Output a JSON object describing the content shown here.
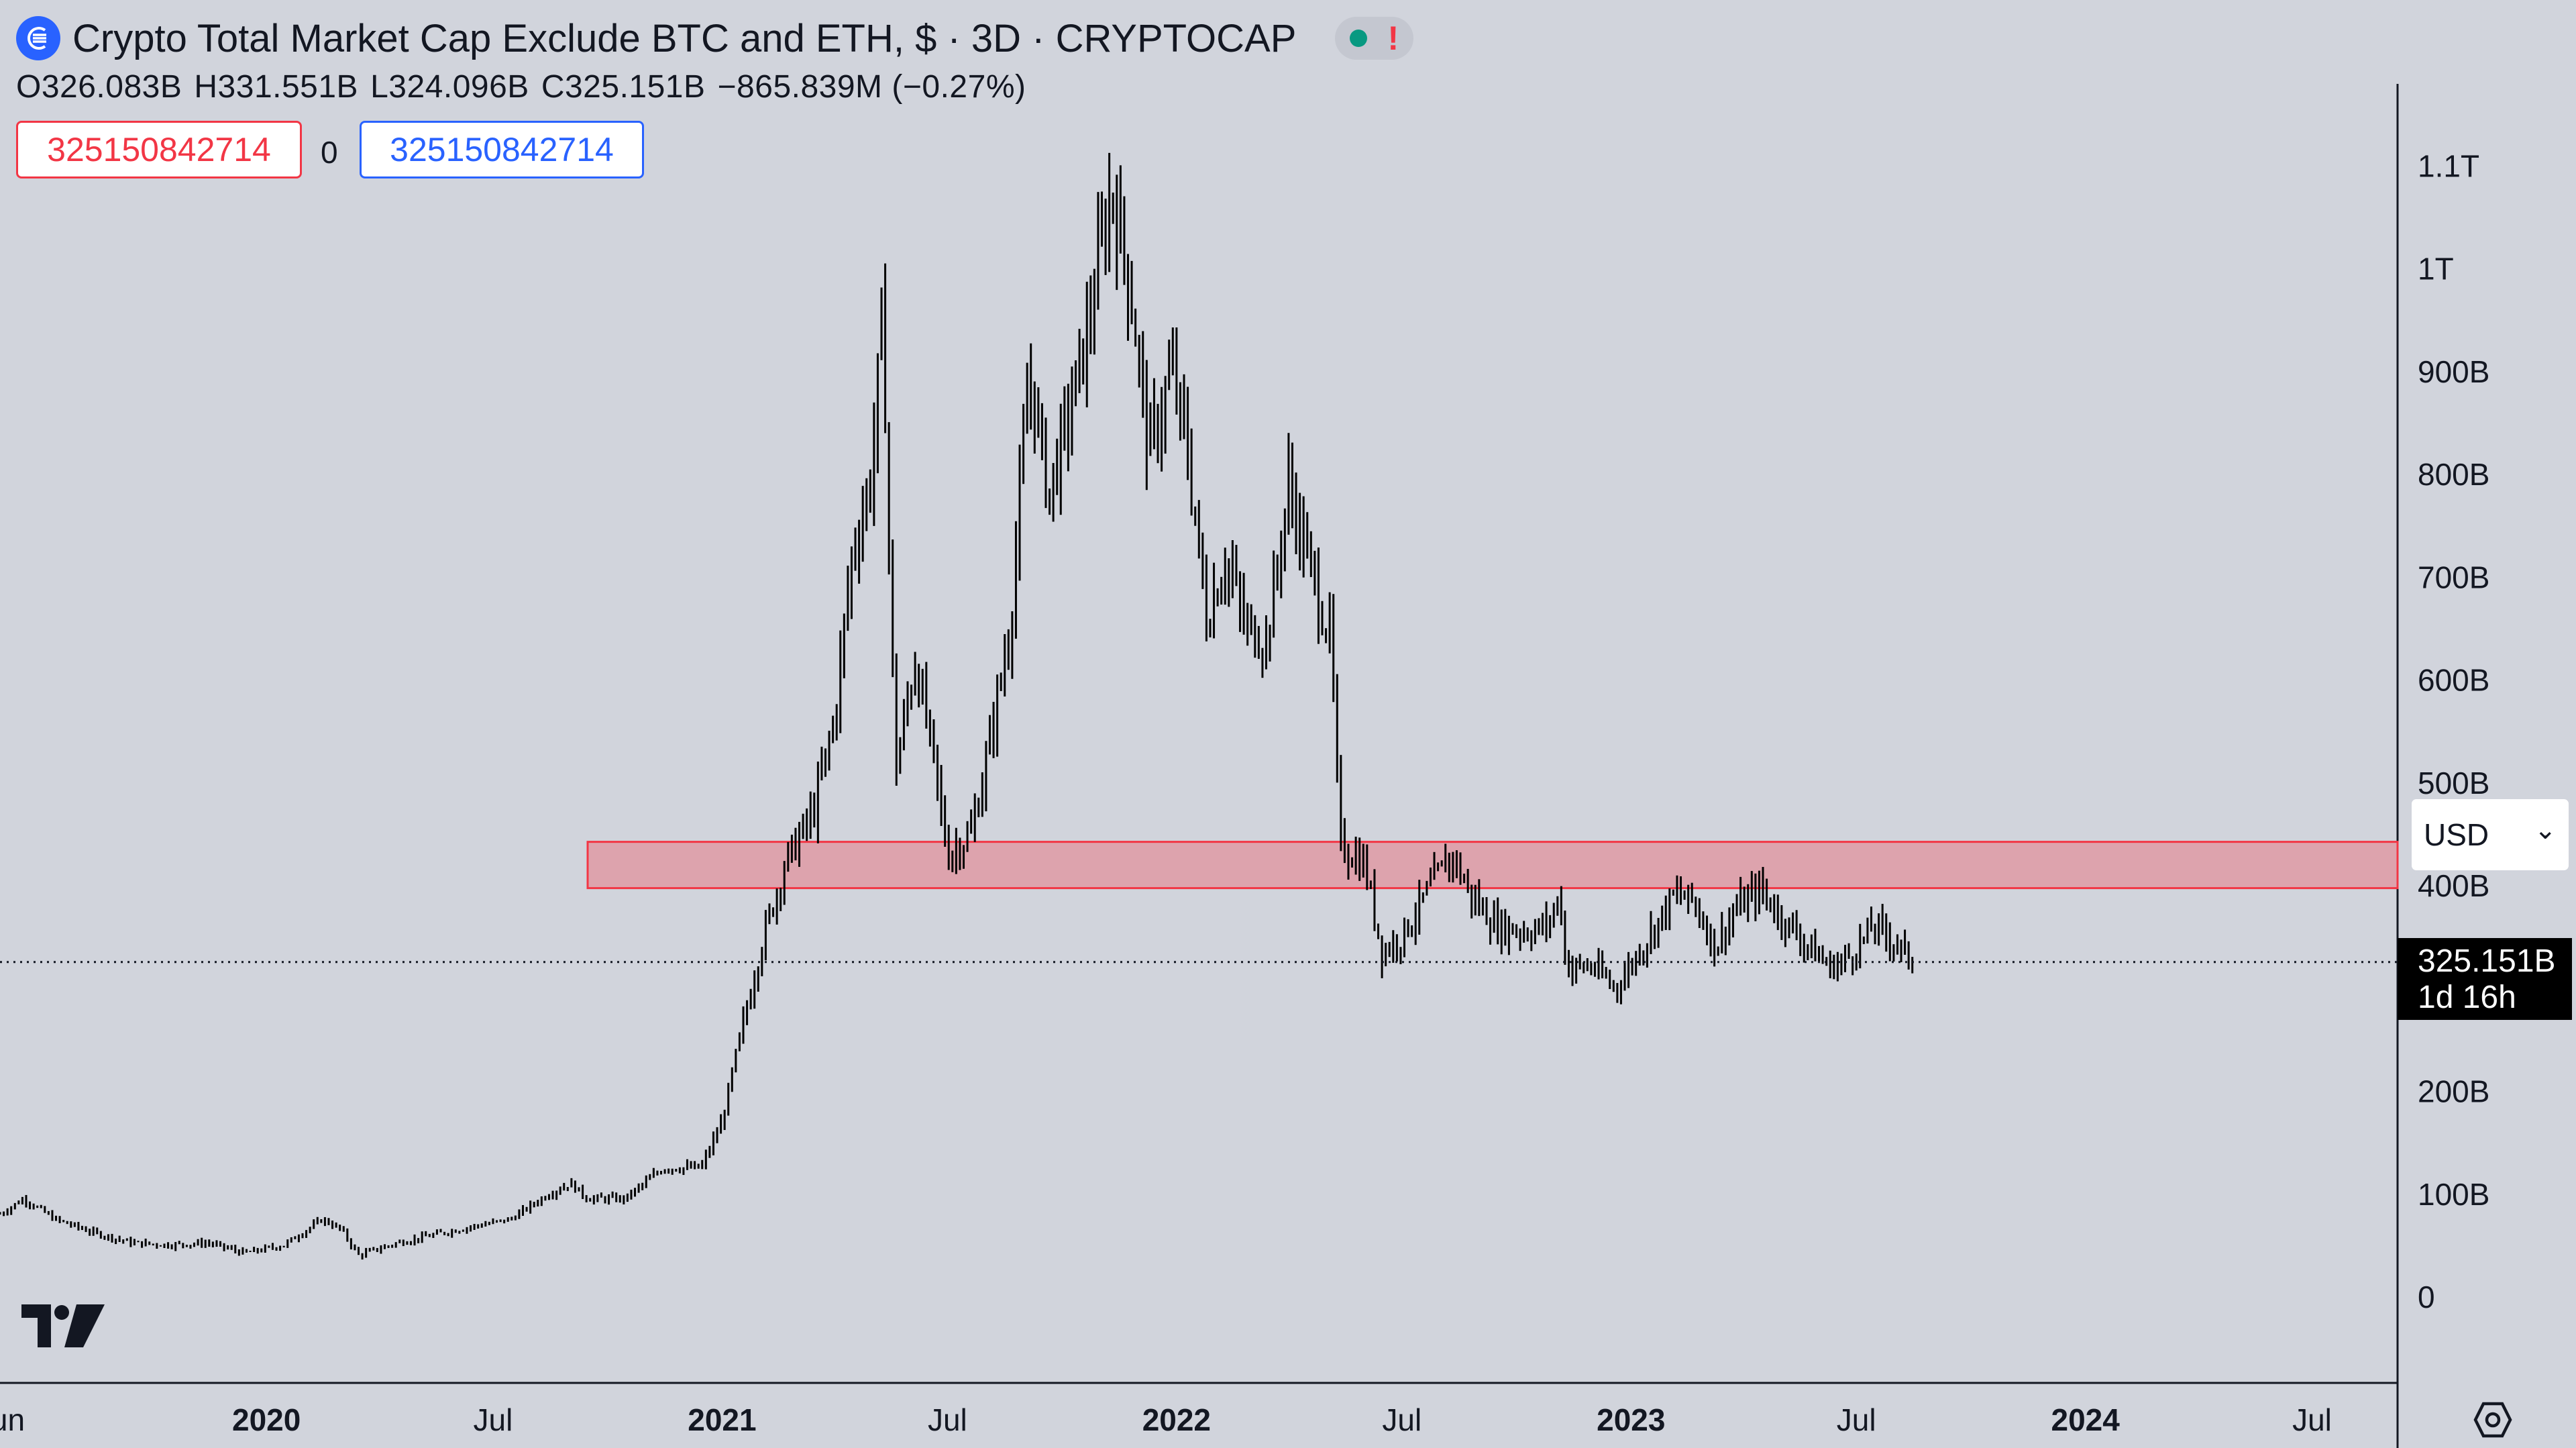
{
  "header": {
    "title": "Crypto Total Market Cap Exclude BTC and ETH, $ · 3D · CRYPTOCAP",
    "status_warning": "!"
  },
  "ohlc": {
    "o_label": "O",
    "o": "326.083B",
    "h_label": "H",
    "h": "331.551B",
    "l_label": "L",
    "l": "324.096B",
    "c_label": "C",
    "c": "325.151B",
    "change": "−865.839M (−0.27%)"
  },
  "values_row": {
    "left": "325150842714",
    "middle": "0",
    "right": "325150842714"
  },
  "currency_select": {
    "value": "USD",
    "arrow": "⌄"
  },
  "price_tag": {
    "price": "325.151B",
    "countdown": "1d 16h"
  },
  "colors": {
    "background": "#d1d4dc",
    "candles": "#000000",
    "zone_fill": "#e0939e",
    "zone_stroke": "#f23645",
    "brand": "#2962ff",
    "status_ok": "#089981"
  },
  "icons": {
    "logo": "cryptocap-logo-icon",
    "tradingview": "tradingview-logo-icon",
    "settings": "settings-icon"
  },
  "chart_data": {
    "type": "candlestick",
    "title": "Crypto Total Market Cap Exclude BTC and ETH, $ · 3D · CRYPTOCAP",
    "y_unit": "USD",
    "y_range_B": [
      -50,
      1180
    ],
    "y_ticks": [
      {
        "value": 0,
        "label": "0"
      },
      {
        "value": 100,
        "label": "100B"
      },
      {
        "value": 200,
        "label": "200B"
      },
      {
        "value": 400,
        "label": "400B"
      },
      {
        "value": 500,
        "label": "500B"
      },
      {
        "value": 600,
        "label": "600B"
      },
      {
        "value": 700,
        "label": "700B"
      },
      {
        "value": 800,
        "label": "800B"
      },
      {
        "value": 900,
        "label": "900B"
      },
      {
        "value": 1000,
        "label": "1T"
      },
      {
        "value": 1100,
        "label": "1.1T"
      }
    ],
    "x_range": [
      "2019-06-01",
      "2024-08-15"
    ],
    "x_ticks": [
      {
        "date": "2019-06-01",
        "label": "Jun",
        "bold": false
      },
      {
        "date": "2020-01-01",
        "label": "2020",
        "bold": true
      },
      {
        "date": "2020-07-01",
        "label": "Jul",
        "bold": false
      },
      {
        "date": "2021-01-01",
        "label": "2021",
        "bold": true
      },
      {
        "date": "2021-07-01",
        "label": "Jul",
        "bold": false
      },
      {
        "date": "2022-01-01",
        "label": "2022",
        "bold": true
      },
      {
        "date": "2022-07-01",
        "label": "Jul",
        "bold": false
      },
      {
        "date": "2023-01-01",
        "label": "2023",
        "bold": true
      },
      {
        "date": "2023-07-01",
        "label": "Jul",
        "bold": false
      },
      {
        "date": "2024-01-01",
        "label": "2024",
        "bold": true
      },
      {
        "date": "2024-07-01",
        "label": "Jul",
        "bold": false
      }
    ],
    "last_price_B": 325.151,
    "zone": {
      "from": "2020-09-15",
      "to": "2024-08-15",
      "low_B": 397,
      "high_B": 442
    },
    "series": [
      {
        "date": "2019-06-01",
        "value": 80
      },
      {
        "date": "2019-06-20",
        "value": 95
      },
      {
        "date": "2019-07-15",
        "value": 75
      },
      {
        "date": "2019-08-15",
        "value": 62
      },
      {
        "date": "2019-09-15",
        "value": 52
      },
      {
        "date": "2019-10-15",
        "value": 50
      },
      {
        "date": "2019-11-15",
        "value": 52
      },
      {
        "date": "2019-12-15",
        "value": 42
      },
      {
        "date": "2020-01-15",
        "value": 50
      },
      {
        "date": "2020-02-15",
        "value": 75
      },
      {
        "date": "2020-03-01",
        "value": 65
      },
      {
        "date": "2020-03-15",
        "value": 40
      },
      {
        "date": "2020-04-15",
        "value": 52
      },
      {
        "date": "2020-05-15",
        "value": 60
      },
      {
        "date": "2020-06-15",
        "value": 68
      },
      {
        "date": "2020-07-15",
        "value": 75
      },
      {
        "date": "2020-08-15",
        "value": 100
      },
      {
        "date": "2020-09-01",
        "value": 110
      },
      {
        "date": "2020-09-15",
        "value": 95
      },
      {
        "date": "2020-10-15",
        "value": 95
      },
      {
        "date": "2020-11-15",
        "value": 125
      },
      {
        "date": "2020-12-15",
        "value": 125
      },
      {
        "date": "2021-01-01",
        "value": 170
      },
      {
        "date": "2021-01-15",
        "value": 250
      },
      {
        "date": "2021-02-01",
        "value": 340
      },
      {
        "date": "2021-02-20",
        "value": 420
      },
      {
        "date": "2021-03-15",
        "value": 470
      },
      {
        "date": "2021-04-01",
        "value": 560
      },
      {
        "date": "2021-04-15",
        "value": 720
      },
      {
        "date": "2021-05-01",
        "value": 800
      },
      {
        "date": "2021-05-10",
        "value": 960
      },
      {
        "date": "2021-05-20",
        "value": 510
      },
      {
        "date": "2021-06-05",
        "value": 620
      },
      {
        "date": "2021-06-20",
        "value": 520
      },
      {
        "date": "2021-07-01",
        "value": 430
      },
      {
        "date": "2021-07-20",
        "value": 450
      },
      {
        "date": "2021-08-01",
        "value": 520
      },
      {
        "date": "2021-08-20",
        "value": 650
      },
      {
        "date": "2021-09-05",
        "value": 900
      },
      {
        "date": "2021-09-20",
        "value": 780
      },
      {
        "date": "2021-10-05",
        "value": 850
      },
      {
        "date": "2021-10-20",
        "value": 930
      },
      {
        "date": "2021-11-10",
        "value": 1080
      },
      {
        "date": "2021-11-25",
        "value": 980
      },
      {
        "date": "2021-12-10",
        "value": 820
      },
      {
        "date": "2021-12-28",
        "value": 900
      },
      {
        "date": "2022-01-10",
        "value": 820
      },
      {
        "date": "2022-01-25",
        "value": 660
      },
      {
        "date": "2022-02-10",
        "value": 720
      },
      {
        "date": "2022-02-25",
        "value": 650
      },
      {
        "date": "2022-03-15",
        "value": 640
      },
      {
        "date": "2022-04-01",
        "value": 790
      },
      {
        "date": "2022-04-20",
        "value": 700
      },
      {
        "date": "2022-05-05",
        "value": 640
      },
      {
        "date": "2022-05-12",
        "value": 440
      },
      {
        "date": "2022-06-01",
        "value": 420
      },
      {
        "date": "2022-06-15",
        "value": 335
      },
      {
        "date": "2022-07-01",
        "value": 350
      },
      {
        "date": "2022-07-20",
        "value": 390
      },
      {
        "date": "2022-08-10",
        "value": 430
      },
      {
        "date": "2022-08-25",
        "value": 390
      },
      {
        "date": "2022-09-15",
        "value": 360
      },
      {
        "date": "2022-10-10",
        "value": 355
      },
      {
        "date": "2022-10-25",
        "value": 360
      },
      {
        "date": "2022-11-05",
        "value": 390
      },
      {
        "date": "2022-11-10",
        "value": 320
      },
      {
        "date": "2022-12-01",
        "value": 320
      },
      {
        "date": "2022-12-20",
        "value": 300
      },
      {
        "date": "2023-01-15",
        "value": 350
      },
      {
        "date": "2023-02-05",
        "value": 390
      },
      {
        "date": "2023-02-20",
        "value": 385
      },
      {
        "date": "2023-03-10",
        "value": 340
      },
      {
        "date": "2023-03-25",
        "value": 375
      },
      {
        "date": "2023-04-15",
        "value": 395
      },
      {
        "date": "2023-05-01",
        "value": 370
      },
      {
        "date": "2023-05-20",
        "value": 345
      },
      {
        "date": "2023-06-10",
        "value": 320
      },
      {
        "date": "2023-06-25",
        "value": 330
      },
      {
        "date": "2023-07-15",
        "value": 360
      },
      {
        "date": "2023-08-01",
        "value": 345
      },
      {
        "date": "2023-08-15",
        "value": 325
      }
    ]
  }
}
